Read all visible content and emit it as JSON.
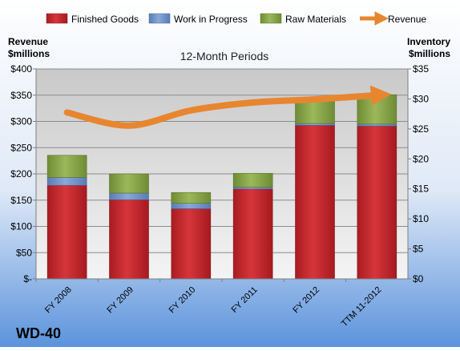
{
  "chart_data": {
    "type": "bar",
    "subtitle": "12-Month Periods",
    "company": "WD-40",
    "left_axis_label": [
      "Revenue",
      "$millions"
    ],
    "right_axis_label": [
      "Inventory",
      "$millions"
    ],
    "categories": [
      "FY 2008",
      "FY 2009",
      "FY 2010",
      "FY 2011",
      "FY 2012",
      "TTM 11-2012"
    ],
    "left_ticks": [
      "$-",
      "$50",
      "$100",
      "$150",
      "$200",
      "$250",
      "$300",
      "$350",
      "$400"
    ],
    "right_ticks": [
      "$0",
      "$5",
      "$10",
      "$15",
      "$20",
      "$25",
      "$30",
      "$35"
    ],
    "ylim_left": [
      0,
      400
    ],
    "ylim_right": [
      0,
      35
    ],
    "legend_position": "top",
    "series": [
      {
        "name": "Finished Goods",
        "axis": "right",
        "stack": true,
        "color": "#c0262d",
        "values": [
          15.6,
          13.2,
          11.7,
          15.0,
          25.6,
          25.5
        ]
      },
      {
        "name": "Work in Progress",
        "axis": "right",
        "stack": true,
        "color": "#6d8fc7",
        "values": [
          1.3,
          1.1,
          0.9,
          0.3,
          0.3,
          0.3
        ]
      },
      {
        "name": "Raw Materials",
        "axis": "right",
        "stack": true,
        "color": "#8aa84a",
        "values": [
          3.7,
          3.2,
          1.8,
          2.3,
          4.0,
          4.9
        ]
      },
      {
        "name": "Revenue",
        "axis": "left",
        "type": "line",
        "color": "#e8862f",
        "values": [
          317,
          292,
          321,
          336,
          342,
          350
        ]
      }
    ]
  }
}
